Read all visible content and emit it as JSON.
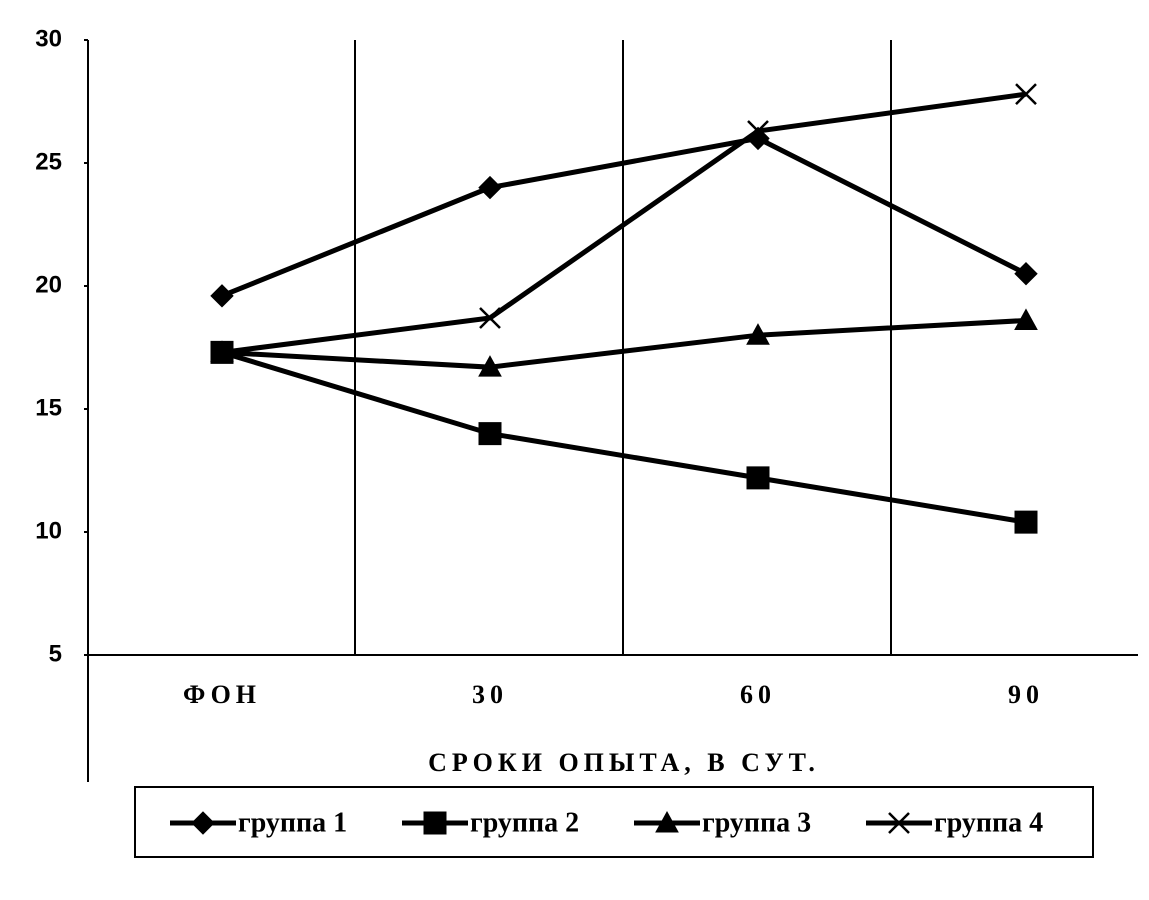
{
  "chart_data": {
    "type": "line",
    "categories": [
      "ФОН",
      "30",
      "60",
      "90"
    ],
    "x_label": "СРОКИ ОПЫТА, В СУТ.",
    "ylim": [
      5,
      30
    ],
    "yticks": [
      5,
      10,
      15,
      20,
      25,
      30
    ],
    "series": [
      {
        "name": "группа 1",
        "color": "#000000",
        "marker": "diamond",
        "values": [
          19.6,
          24,
          26,
          20.5
        ]
      },
      {
        "name": "группа 2",
        "color": "#000000",
        "marker": "square",
        "values": [
          17.3,
          14,
          12.2,
          10.4
        ]
      },
      {
        "name": "группа 3",
        "color": "#000000",
        "marker": "triangle",
        "values": [
          17.3,
          16.7,
          18,
          18.6
        ]
      },
      {
        "name": "группа 4",
        "color": "#000000",
        "marker": "x",
        "values": [
          17.3,
          18.7,
          26.3,
          27.8
        ]
      }
    ]
  }
}
